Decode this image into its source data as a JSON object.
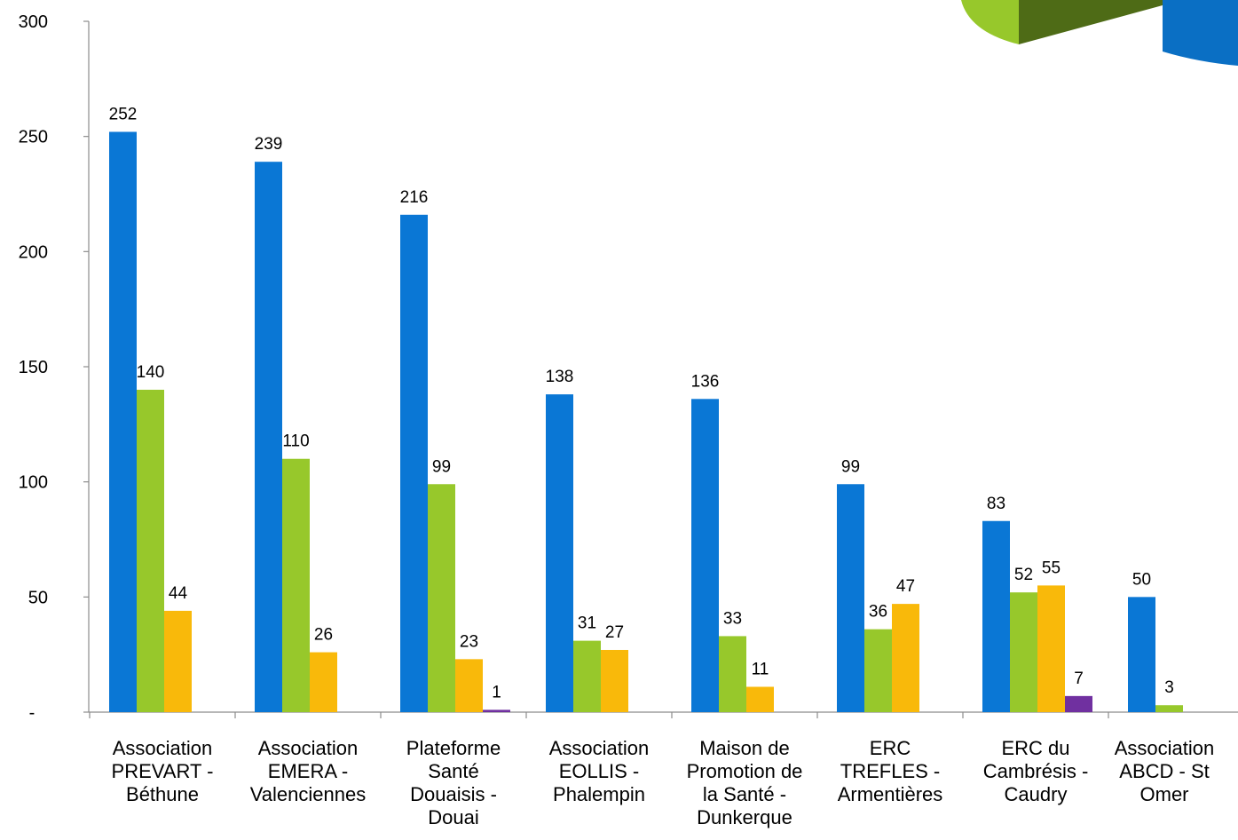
{
  "chart_data": {
    "type": "bar",
    "ylim": [
      0,
      300
    ],
    "yticks": [
      {
        "value": 0,
        "label": "-"
      },
      {
        "value": 50,
        "label": "50"
      },
      {
        "value": 100,
        "label": "100"
      },
      {
        "value": 150,
        "label": "150"
      },
      {
        "value": 200,
        "label": "200"
      },
      {
        "value": 250,
        "label": "250"
      },
      {
        "value": 300,
        "label": "300"
      }
    ],
    "categories": [
      [
        "Association",
        "PREVART -",
        "Béthune"
      ],
      [
        "Association",
        "EMERA -",
        "Valenciennes"
      ],
      [
        "Plateforme",
        "Santé",
        "Douaisis -",
        "Douai"
      ],
      [
        "Association",
        "EOLLIS -",
        "Phalempin"
      ],
      [
        "Maison de",
        "Promotion de",
        "la Santé -",
        "Dunkerque"
      ],
      [
        "ERC",
        "TREFLES -",
        "Armentières"
      ],
      [
        "ERC du",
        "Cambrésis -",
        "Caudry"
      ],
      [
        "Association",
        "ABCD - St",
        "Omer"
      ]
    ],
    "series": [
      {
        "color": "#0a77d5",
        "values": [
          252,
          239,
          216,
          138,
          136,
          99,
          83,
          50
        ]
      },
      {
        "color": "#97c82b",
        "values": [
          140,
          110,
          99,
          31,
          33,
          36,
          52,
          3
        ]
      },
      {
        "color": "#f9b90a",
        "values": [
          44,
          26,
          23,
          27,
          11,
          47,
          55,
          null
        ]
      },
      {
        "color": "#7030a0",
        "values": [
          null,
          null,
          1,
          null,
          null,
          null,
          7,
          null
        ]
      }
    ],
    "grid": false,
    "legend": "none"
  },
  "decoration": {
    "colors": {
      "light_green": "#97c82b",
      "dark_green": "#4e6b16",
      "blue": "#0a6fc4"
    }
  }
}
